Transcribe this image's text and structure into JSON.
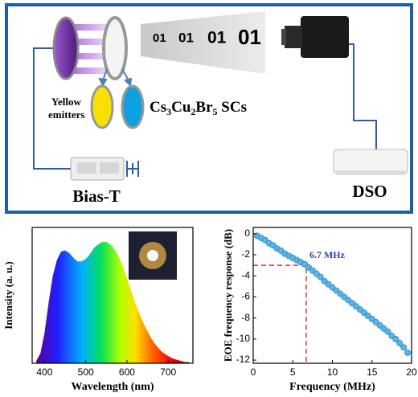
{
  "diagram": {
    "bits": [
      "01",
      "01",
      "01",
      "01"
    ],
    "emitter_label": [
      "Yellow",
      "emitters"
    ],
    "crystal_label": [
      "Cs",
      "3",
      "Cu",
      "2",
      "Br",
      "5",
      " SCs"
    ],
    "bias_label": "Bias-T",
    "scope_label": "DSO"
  },
  "chart_data": [
    {
      "type": "area",
      "xlabel": "Wavelength (nm)",
      "ylabel": "Intensity (a. u.)",
      "x": [
        380,
        390,
        400,
        410,
        420,
        430,
        440,
        450,
        460,
        470,
        480,
        490,
        500,
        510,
        520,
        530,
        540,
        550,
        560,
        570,
        580,
        590,
        600,
        610,
        620,
        630,
        640,
        650,
        660,
        670,
        680,
        690,
        700,
        710,
        720,
        730,
        740,
        750
      ],
      "values": [
        0.02,
        0.08,
        0.25,
        0.5,
        0.72,
        0.85,
        0.92,
        0.93,
        0.91,
        0.87,
        0.84,
        0.84,
        0.86,
        0.9,
        0.95,
        0.98,
        1.0,
        1.0,
        0.98,
        0.94,
        0.88,
        0.8,
        0.7,
        0.6,
        0.5,
        0.41,
        0.33,
        0.26,
        0.2,
        0.15,
        0.11,
        0.08,
        0.06,
        0.04,
        0.03,
        0.02,
        0.01,
        0.01
      ],
      "xlim": [
        370,
        760
      ],
      "ylim": [
        0,
        1.12
      ],
      "xticks": [
        400,
        500,
        600,
        700
      ]
    },
    {
      "type": "scatter",
      "xlabel": "Frequency (MHz)",
      "ylabel": "EOE frequency response (dB)",
      "color": "#5ab4e6",
      "x": [
        0.5,
        1,
        1.5,
        2,
        2.5,
        3,
        3.5,
        4,
        4.5,
        5,
        5.5,
        6,
        6.5,
        7,
        7.5,
        8,
        8.5,
        9,
        9.5,
        10,
        10.5,
        11,
        11.5,
        12,
        12.5,
        13,
        13.5,
        14,
        14.5,
        15,
        15.5,
        16,
        16.5,
        17,
        17.5,
        18,
        18.5,
        19,
        19.5
      ],
      "values": [
        -0.2,
        -0.4,
        -0.6,
        -0.9,
        -1.1,
        -1.4,
        -1.6,
        -1.9,
        -2.1,
        -2.3,
        -2.5,
        -2.7,
        -2.9,
        -3.2,
        -3.5,
        -3.8,
        -4.1,
        -4.5,
        -4.8,
        -5.1,
        -5.4,
        -5.7,
        -6.0,
        -6.3,
        -6.6,
        -6.9,
        -7.2,
        -7.5,
        -7.8,
        -8.1,
        -8.4,
        -8.7,
        -9.0,
        -9.3,
        -9.7,
        -10.0,
        -10.4,
        -10.8,
        -11.3
      ],
      "xlim": [
        0,
        20
      ],
      "ylim": [
        -12.3,
        0.6
      ],
      "xticks": [
        0,
        5,
        10,
        15,
        20
      ],
      "yticks": [
        0,
        -2,
        -4,
        -6,
        -8,
        -10,
        -12
      ],
      "annotation": {
        "text": "6.7 MHz",
        "x": 6.7,
        "y": -3
      }
    }
  ]
}
